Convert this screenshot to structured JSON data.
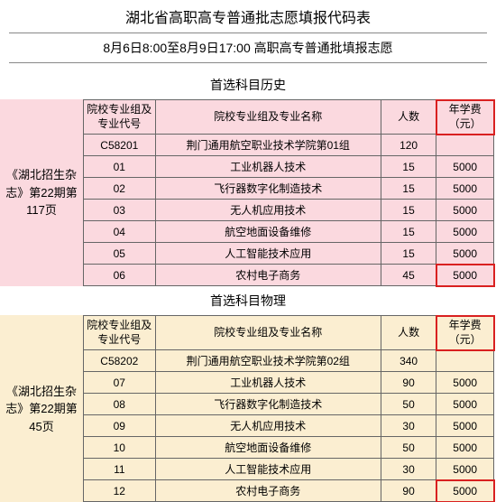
{
  "title": "湖北省高职高专普通批志愿填报代码表",
  "subtitle": "8月6日8:00至8月9日17:00  高职高专普通批填报志愿",
  "headers": {
    "code": "院校专业组及专业代号",
    "name": "院校专业组及专业名称",
    "count": "人数",
    "fee": "年学费（元）"
  },
  "history": {
    "section_title": "首选科目历史",
    "side_label": "《湖北招生杂志》第22期第117页",
    "group_code": "C58201",
    "group_name": "荆门通用航空职业技术学院第01组",
    "group_count": "120",
    "rows": [
      {
        "code": "01",
        "name": "工业机器人技术",
        "count": "15",
        "fee": "5000"
      },
      {
        "code": "02",
        "name": "飞行器数字化制造技术",
        "count": "15",
        "fee": "5000"
      },
      {
        "code": "03",
        "name": "无人机应用技术",
        "count": "15",
        "fee": "5000"
      },
      {
        "code": "04",
        "name": "航空地面设备维修",
        "count": "15",
        "fee": "5000"
      },
      {
        "code": "05",
        "name": "人工智能技术应用",
        "count": "15",
        "fee": "5000"
      },
      {
        "code": "06",
        "name": "农村电子商务",
        "count": "45",
        "fee": "5000"
      }
    ]
  },
  "physics": {
    "section_title": "首选科目物理",
    "side_label": "《湖北招生杂志》第22期第45页",
    "group_code": "C58202",
    "group_name": "荆门通用航空职业技术学院第02组",
    "group_count": "340",
    "rows": [
      {
        "code": "07",
        "name": "工业机器人技术",
        "count": "90",
        "fee": "5000"
      },
      {
        "code": "08",
        "name": "飞行器数字化制造技术",
        "count": "50",
        "fee": "5000"
      },
      {
        "code": "09",
        "name": "无人机应用技术",
        "count": "30",
        "fee": "5000"
      },
      {
        "code": "10",
        "name": "航空地面设备维修",
        "count": "50",
        "fee": "5000"
      },
      {
        "code": "11",
        "name": "人工智能技术应用",
        "count": "30",
        "fee": "5000"
      },
      {
        "code": "12",
        "name": "农村电子商务",
        "count": "90",
        "fee": "5000"
      }
    ]
  },
  "colors": {
    "history_bg": "#fbd9df",
    "physics_bg": "#fbeed1",
    "highlight_border": "#d92020",
    "grid_border": "#666666"
  }
}
